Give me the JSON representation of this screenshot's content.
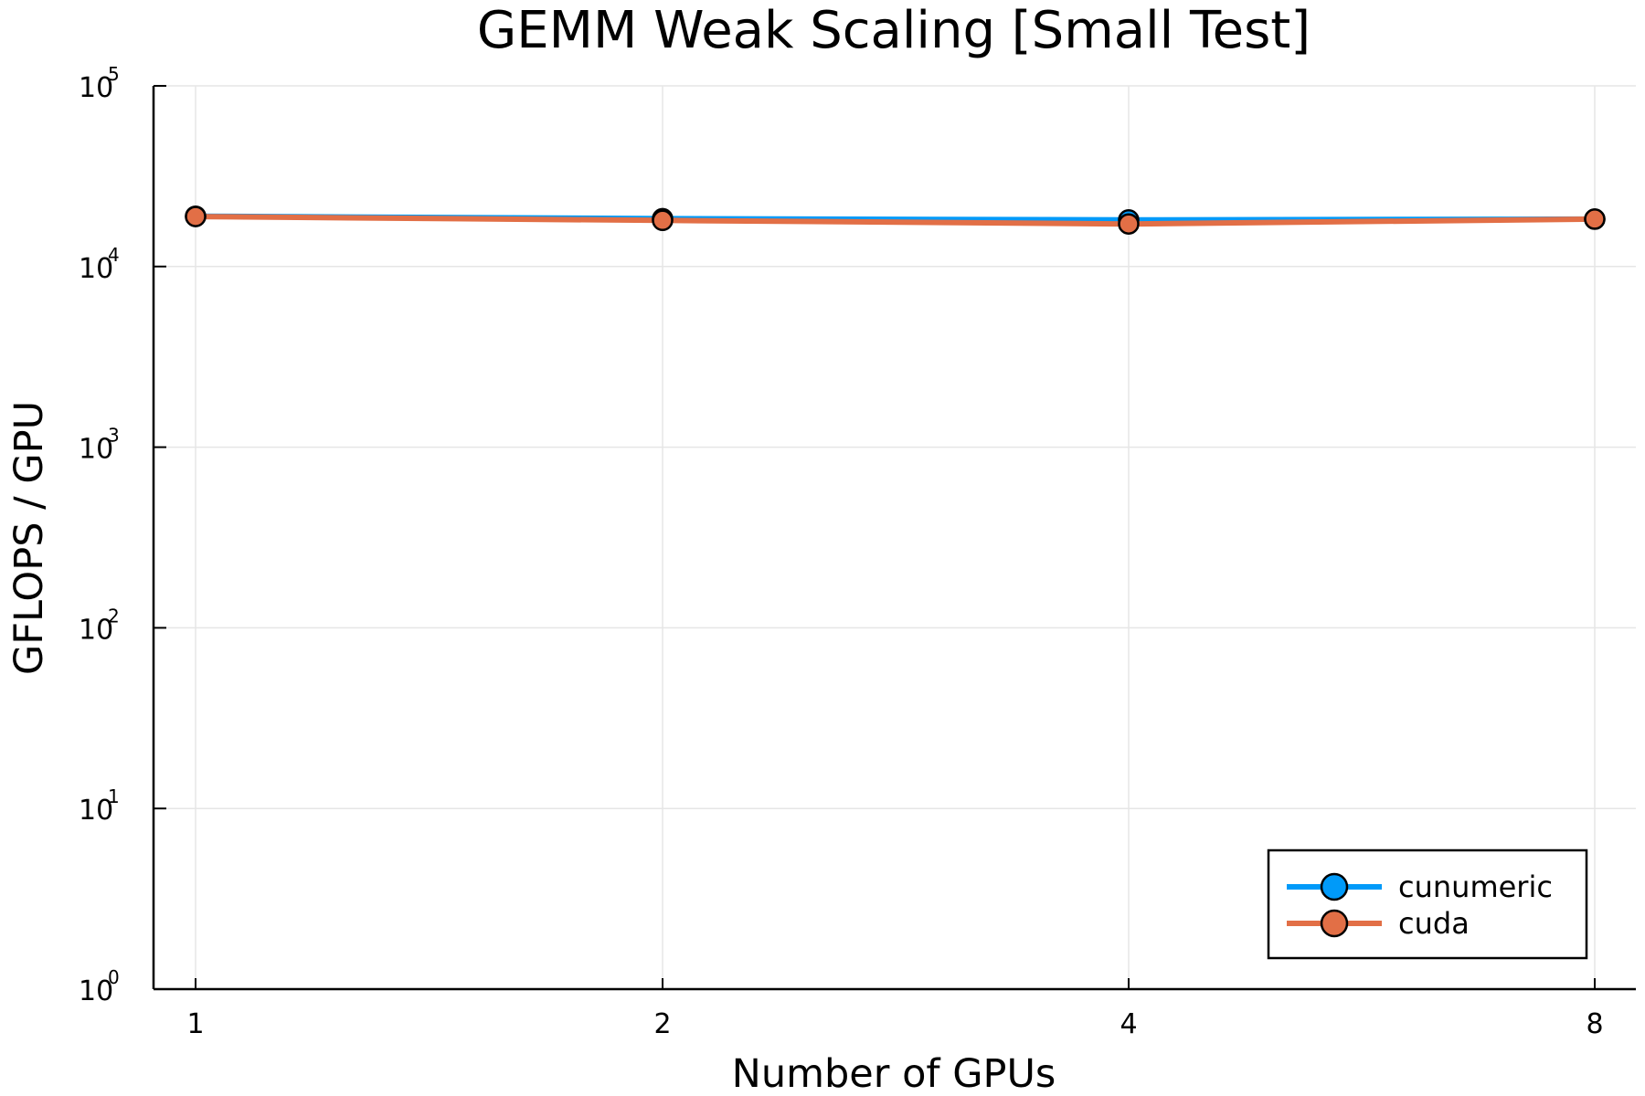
{
  "chart_data": {
    "type": "line",
    "title": "GEMM Weak Scaling [Small Test]",
    "xlabel": "Number of GPUs",
    "ylabel": "GFLOPS / GPU",
    "x": [
      1,
      2,
      4,
      8
    ],
    "x_scale": "log2",
    "x_ticks": [
      "1",
      "2",
      "4",
      "8"
    ],
    "y_scale": "log10",
    "ylim": [
      1,
      100000
    ],
    "y_ticks": [
      {
        "base": "10",
        "exp": "0"
      },
      {
        "base": "10",
        "exp": "1"
      },
      {
        "base": "10",
        "exp": "2"
      },
      {
        "base": "10",
        "exp": "3"
      },
      {
        "base": "10",
        "exp": "4"
      },
      {
        "base": "10",
        "exp": "5"
      }
    ],
    "grid": true,
    "legend_position": "bottom-right",
    "series": [
      {
        "name": "cunumeric",
        "color": "#009af9",
        "values": [
          19000,
          18400,
          18100,
          18300
        ]
      },
      {
        "name": "cuda",
        "color": "#e26f46",
        "values": [
          18900,
          18000,
          17200,
          18300
        ]
      }
    ]
  }
}
